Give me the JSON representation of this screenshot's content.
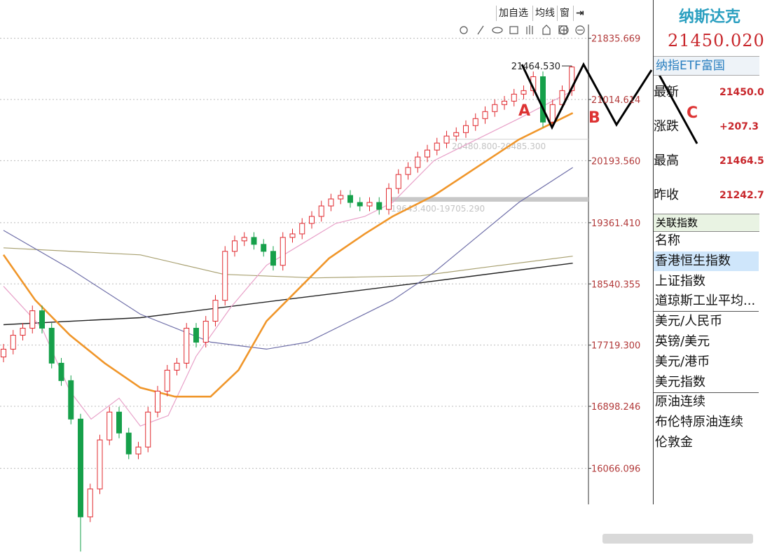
{
  "toolbar": {
    "buttons": [
      "加自选",
      "均线",
      "窗"
    ]
  },
  "chart_data": {
    "type": "candlestick",
    "ylim": [
      14850,
      22020
    ],
    "yticks": [
      21835.669,
      21014.614,
      {
        "value": 20193.56,
        "label": "20193.560"
      },
      {
        "value": 19361.41,
        "label": "19361.410"
      },
      18540.355,
      {
        "value": 17719.3,
        "label": "17719.300"
      },
      16898.246,
      16066.096
    ],
    "grid": true,
    "up_color": "#e0282e",
    "down_color": "#16a04a",
    "open": [
      17560,
      17665,
      17852,
      17946,
      18180,
      17946,
      17477,
      17243,
      16727,
      15415,
      15790,
      16447,
      16821,
      16540,
      16259,
      16352,
      16821,
      17102,
      17383,
      17477,
      17946,
      17758,
      18040,
      18321,
      18977,
      19118,
      19164,
      19071,
      18977,
      18790,
      19164,
      19211,
      19352,
      19446,
      19586,
      19680,
      19727,
      19633,
      19586,
      19633,
      19540,
      19820,
      20008,
      20102,
      20243,
      20336,
      20430,
      20524,
      20570,
      20664,
      20758,
      20852,
      20946,
      20992,
      21086,
      21133,
      21320,
      20711,
      20946,
      21133
    ],
    "high": [
      17735,
      17922,
      18016,
      18250,
      18250,
      18016,
      17547,
      17313,
      16797,
      15860,
      16517,
      16891,
      16891,
      16610,
      16422,
      16891,
      17172,
      17453,
      17547,
      18016,
      18016,
      18110,
      18391,
      19047,
      19188,
      19234,
      19234,
      19141,
      19047,
      19234,
      19281,
      19422,
      19516,
      19656,
      19750,
      19797,
      19797,
      19703,
      19703,
      19703,
      19890,
      20078,
      20172,
      20313,
      20406,
      20500,
      20594,
      20640,
      20734,
      20828,
      20922,
      21016,
      21062,
      21156,
      21203,
      21390,
      21390,
      21016,
      21203,
      21464.53
    ],
    "low": [
      17490,
      17595,
      17782,
      17876,
      17876,
      17407,
      17173,
      16657,
      14950,
      15345,
      15720,
      16377,
      16470,
      16189,
      16189,
      16282,
      16751,
      17032,
      17313,
      17407,
      17688,
      17688,
      17970,
      18251,
      18907,
      19048,
      19001,
      18907,
      18720,
      18720,
      19094,
      19141,
      19282,
      19376,
      19516,
      19610,
      19563,
      19516,
      19516,
      19470,
      19470,
      19750,
      19938,
      20032,
      20173,
      20266,
      20360,
      20454,
      20500,
      20594,
      20688,
      20782,
      20876,
      20922,
      21016,
      21063,
      20641,
      20641,
      20876,
      21063
    ],
    "close": [
      17665,
      17852,
      17946,
      18180,
      17946,
      17477,
      17243,
      16727,
      15415,
      15790,
      16447,
      16821,
      16540,
      16259,
      16352,
      16821,
      17102,
      17383,
      17477,
      17946,
      17758,
      18040,
      18321,
      18977,
      19118,
      19164,
      19071,
      18977,
      18790,
      19164,
      19211,
      19352,
      19446,
      19586,
      19680,
      19727,
      19633,
      19586,
      19633,
      19540,
      19820,
      20008,
      20102,
      20243,
      20336,
      20430,
      20524,
      20570,
      20664,
      20758,
      20852,
      20946,
      20992,
      21086,
      21133,
      21320,
      20711,
      20946,
      21133,
      21450.02
    ],
    "lines": [
      {
        "color": "#a8a070",
        "width": 1.2,
        "x": [
          0,
          14.2,
          22.9,
          32.4,
          43.3,
          50.5,
          59.1
        ],
        "values": [
          19024,
          18930,
          18668,
          18621,
          18649,
          18771,
          18912
        ]
      },
      {
        "color": "#222222",
        "width": 1.4,
        "x": [
          0,
          14.2,
          28.7,
          43.3,
          59.1
        ],
        "values": [
          17993,
          18087,
          18321,
          18555,
          18818
        ]
      },
      {
        "color": "#6e6ea8",
        "width": 1.2,
        "x": [
          0,
          6.9,
          14.2,
          21.5,
          27.3,
          31.6,
          36,
          40.4,
          44.7,
          49.1,
          53.5,
          59.1
        ],
        "values": [
          19258,
          18743,
          18134,
          17759,
          17665,
          17759,
          18040,
          18321,
          18696,
          19165,
          19633,
          20102
        ]
      },
      {
        "color": "#e8a0c8",
        "width": 1.2,
        "x": [
          0,
          4,
          6.9,
          9.1,
          12,
          14.2,
          17.1,
          20,
          23.6,
          27.3,
          30.9,
          34.5,
          37.5,
          40.4,
          44.7,
          49.1,
          53.5,
          59.1
        ],
        "values": [
          18508,
          17946,
          17102,
          16727,
          17008,
          16634,
          16774,
          17570,
          18227,
          18790,
          19071,
          19352,
          19446,
          19633,
          20195,
          20477,
          20758,
          21133
        ]
      },
      {
        "color": "#f0962a",
        "width": 2.6,
        "x": [
          0,
          3.3,
          6.9,
          10.5,
          14.2,
          17.8,
          21.5,
          24.4,
          27.3,
          30.9,
          33.8,
          37.5,
          40.4,
          44.7,
          49.1,
          53.5,
          59.1
        ],
        "values": [
          18930,
          18321,
          17852,
          17477,
          17149,
          17028,
          17028,
          17384,
          18040,
          18508,
          18883,
          19211,
          19446,
          19727,
          20102,
          20477,
          20833
        ]
      }
    ],
    "max_label": {
      "value": 21464.53,
      "label": "21464.530"
    },
    "ranges": [
      {
        "from": 20480.8,
        "to": 20485.3,
        "label": "20480.800-20485.300"
      },
      {
        "from": 19643.4,
        "to": 19705.29,
        "label": "19643.400-19705.290"
      }
    ],
    "hand_letters": [
      "A",
      "B",
      "C"
    ]
  },
  "quote_panel": {
    "name": "纳斯达克",
    "price": "21450.020",
    "fund": "纳指ETF富国",
    "rows": [
      [
        "最新",
        "21450.0"
      ],
      [
        "涨跌",
        "+207.3"
      ],
      [
        "最高",
        "21464.5"
      ],
      [
        "昨收",
        "21242.7"
      ]
    ]
  },
  "related": {
    "header": "关联指数",
    "items": [
      "名称",
      "香港恒生指数",
      "上证指数",
      "道琼斯工业平均...",
      "美元/人民币",
      "英镑/美元",
      "美元/港币",
      "美元指数",
      "原油连续",
      "布伦特原油连续",
      "伦敦金"
    ]
  }
}
